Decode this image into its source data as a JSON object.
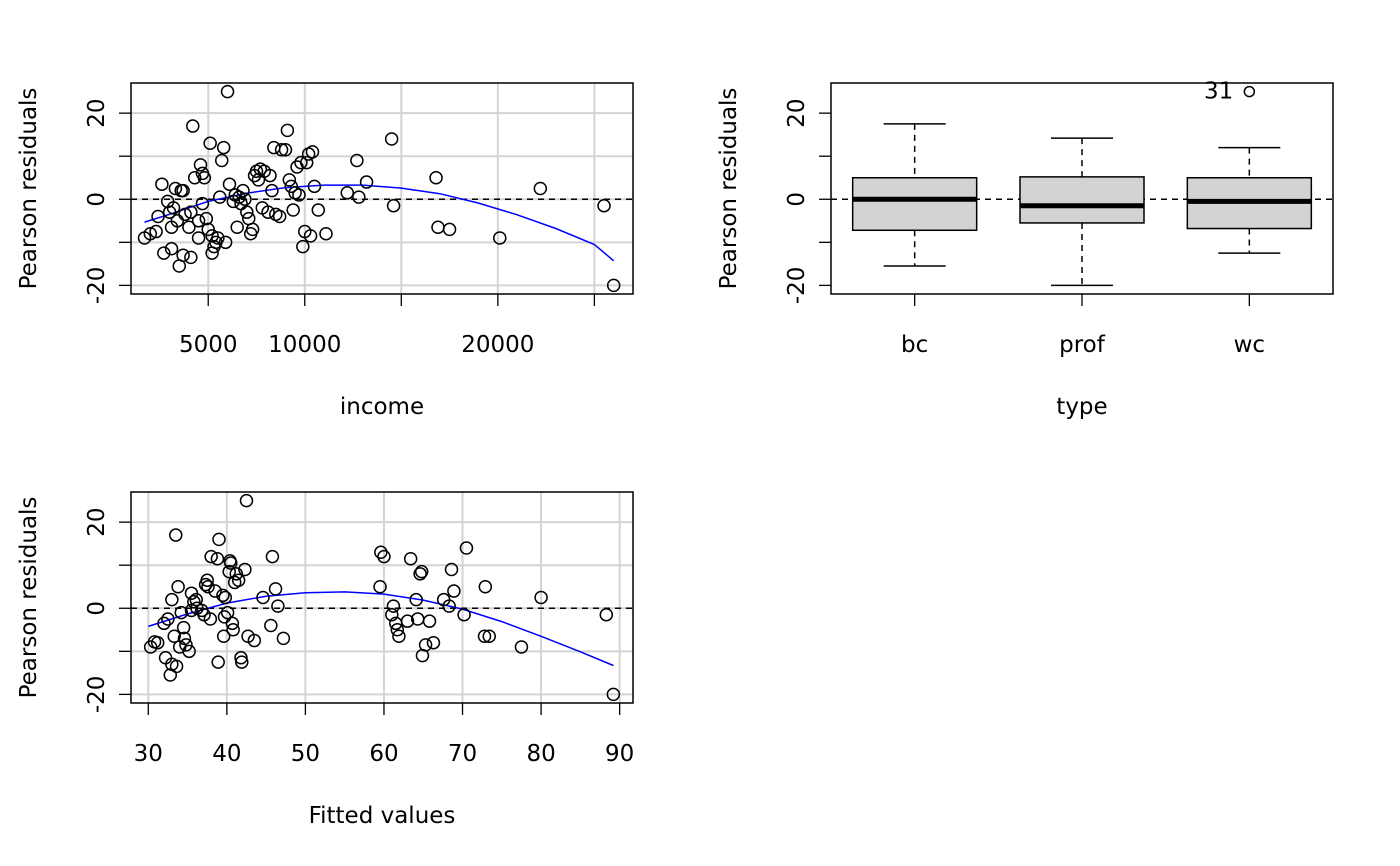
{
  "chart_data": [
    {
      "type": "scatter",
      "xlabel": "income",
      "ylabel": "Pearson residuals",
      "x_ticks": [
        5000,
        10000,
        15000,
        20000,
        25000
      ],
      "x_tick_labels": [
        "5000",
        "10000",
        "",
        "20000",
        ""
      ],
      "y_ticks": [
        -20,
        -10,
        0,
        10,
        20
      ],
      "y_tick_labels": [
        "-20",
        "",
        "0",
        "",
        "20"
      ],
      "xlim": [
        1000,
        27000
      ],
      "ylim": [
        -22,
        27
      ],
      "grid": true,
      "reference_line": 0,
      "points": [
        [
          1700,
          -9
        ],
        [
          2000,
          -8
        ],
        [
          2300,
          -7.5
        ],
        [
          2400,
          -4
        ],
        [
          2600,
          3.5
        ],
        [
          2700,
          -12.5
        ],
        [
          2900,
          -0.5
        ],
        [
          3000,
          -3
        ],
        [
          3100,
          -11.5
        ],
        [
          3100,
          -6.5
        ],
        [
          3200,
          -2
        ],
        [
          3300,
          2.5
        ],
        [
          3400,
          -5
        ],
        [
          3500,
          -15.5
        ],
        [
          3600,
          2
        ],
        [
          3700,
          2
        ],
        [
          3700,
          -13
        ],
        [
          3800,
          -3.5
        ],
        [
          4000,
          -6.5
        ],
        [
          4100,
          -13.5
        ],
        [
          4100,
          -3
        ],
        [
          4200,
          17
        ],
        [
          4300,
          5
        ],
        [
          4500,
          -5
        ],
        [
          4500,
          -9
        ],
        [
          4600,
          8
        ],
        [
          4700,
          6
        ],
        [
          4700,
          -1
        ],
        [
          4800,
          5
        ],
        [
          4900,
          -4.5
        ],
        [
          5000,
          -7
        ],
        [
          5100,
          13
        ],
        [
          5200,
          -8.5
        ],
        [
          5200,
          -12.5
        ],
        [
          5300,
          -11
        ],
        [
          5400,
          -10
        ],
        [
          5500,
          -9
        ],
        [
          5600,
          0.5
        ],
        [
          5700,
          9
        ],
        [
          5800,
          12
        ],
        [
          5900,
          -10
        ],
        [
          6000,
          25
        ],
        [
          6100,
          3.5
        ],
        [
          6300,
          -0.5
        ],
        [
          6400,
          1
        ],
        [
          6500,
          -6.5
        ],
        [
          6600,
          0.5
        ],
        [
          6700,
          -1
        ],
        [
          6800,
          2
        ],
        [
          6900,
          0
        ],
        [
          7000,
          -3
        ],
        [
          7100,
          -4.5
        ],
        [
          7200,
          -8
        ],
        [
          7300,
          -7
        ],
        [
          7400,
          5.5
        ],
        [
          7500,
          6.5
        ],
        [
          7600,
          4.5
        ],
        [
          7700,
          7
        ],
        [
          7800,
          -2
        ],
        [
          7900,
          6.5
        ],
        [
          8100,
          -3
        ],
        [
          8200,
          5.5
        ],
        [
          8300,
          2
        ],
        [
          8400,
          12
        ],
        [
          8500,
          -3.5
        ],
        [
          8700,
          -4
        ],
        [
          8800,
          11.5
        ],
        [
          9000,
          11.5
        ],
        [
          9100,
          16
        ],
        [
          9200,
          4.5
        ],
        [
          9300,
          3
        ],
        [
          9400,
          -2.5
        ],
        [
          9500,
          1.5
        ],
        [
          9600,
          7.5
        ],
        [
          9700,
          1
        ],
        [
          9800,
          8.5
        ],
        [
          9900,
          -11
        ],
        [
          10000,
          -7.5
        ],
        [
          10100,
          8.5
        ],
        [
          10200,
          10.5
        ],
        [
          10300,
          -8.5
        ],
        [
          10400,
          11
        ],
        [
          10500,
          3
        ],
        [
          10700,
          -2.5
        ],
        [
          11100,
          -8
        ],
        [
          12200,
          1.5
        ],
        [
          12700,
          9
        ],
        [
          12800,
          0.5
        ],
        [
          13200,
          4
        ],
        [
          14500,
          14
        ],
        [
          14600,
          -1.5
        ],
        [
          16800,
          5
        ],
        [
          16900,
          -6.5
        ],
        [
          17500,
          -7
        ],
        [
          20100,
          -9
        ],
        [
          22200,
          2.5
        ],
        [
          25500,
          -1.5
        ],
        [
          26000,
          -20
        ]
      ],
      "fit_curve": [
        [
          1700,
          -5.3
        ],
        [
          3000,
          -3.5
        ],
        [
          5000,
          -0.5
        ],
        [
          7000,
          1.4
        ],
        [
          9000,
          2.7
        ],
        [
          11000,
          3.3
        ],
        [
          13000,
          3.3
        ],
        [
          15000,
          2.6
        ],
        [
          17000,
          1.3
        ],
        [
          19000,
          -0.9
        ],
        [
          21000,
          -3.6
        ],
        [
          23000,
          -6.8
        ],
        [
          25000,
          -10.5
        ],
        [
          26000,
          -14.3
        ]
      ]
    },
    {
      "type": "box",
      "xlabel": "type",
      "ylabel": "Pearson residuals",
      "categories": [
        "bc",
        "prof",
        "wc"
      ],
      "y_ticks": [
        -20,
        -10,
        0,
        10,
        20
      ],
      "y_tick_labels": [
        "-20",
        "",
        "0",
        "",
        "20"
      ],
      "ylim": [
        -22,
        27
      ],
      "reference_line": 0,
      "boxes": [
        {
          "min": -15.5,
          "q1": -7.2,
          "median": 0,
          "q3": 5,
          "max": 17.5
        },
        {
          "min": -20,
          "q1": -5.5,
          "median": -1.5,
          "q3": 5.2,
          "max": 14.2
        },
        {
          "min": -12.5,
          "q1": -6.8,
          "median": -0.5,
          "q3": 5,
          "max": 12
        }
      ],
      "outliers": [
        {
          "category": "wc",
          "value": 25,
          "label": "31"
        }
      ]
    },
    {
      "type": "scatter",
      "xlabel": "Fitted values",
      "ylabel": "Pearson residuals",
      "x_ticks": [
        30,
        40,
        50,
        60,
        70,
        80,
        90
      ],
      "x_tick_labels": [
        "30",
        "40",
        "50",
        "60",
        "70",
        "80",
        "90"
      ],
      "y_ticks": [
        -20,
        -10,
        0,
        10,
        20
      ],
      "y_tick_labels": [
        "-20",
        "",
        "0",
        "",
        "20"
      ],
      "xlim": [
        27.8,
        91.7
      ],
      "ylim": [
        -22,
        27
      ],
      "grid": true,
      "reference_line": 0,
      "points": [
        [
          30.3,
          -9
        ],
        [
          30.8,
          -7.8
        ],
        [
          31.2,
          -8
        ],
        [
          32,
          -3.5
        ],
        [
          32.2,
          -11.5
        ],
        [
          32.5,
          -2.5
        ],
        [
          32.8,
          -15.5
        ],
        [
          33,
          2
        ],
        [
          33,
          -13
        ],
        [
          33.3,
          -6.5
        ],
        [
          33.5,
          17
        ],
        [
          33.6,
          -13.5
        ],
        [
          33.8,
          5
        ],
        [
          34,
          -9
        ],
        [
          34.2,
          -1
        ],
        [
          34.5,
          -4.5
        ],
        [
          34.6,
          -7
        ],
        [
          34.8,
          -8.5
        ],
        [
          35.2,
          -10
        ],
        [
          35.5,
          3.5
        ],
        [
          35.5,
          -0.5
        ],
        [
          35.8,
          1.5
        ],
        [
          36.1,
          2
        ],
        [
          36.2,
          0
        ],
        [
          36.8,
          -0.5
        ],
        [
          37.1,
          -1.5
        ],
        [
          37.3,
          5.5
        ],
        [
          37.5,
          6.5
        ],
        [
          37.6,
          5
        ],
        [
          37.9,
          -2.5
        ],
        [
          38,
          12
        ],
        [
          38.5,
          4
        ],
        [
          38.8,
          11.5
        ],
        [
          38.9,
          -12.5
        ],
        [
          39,
          16
        ],
        [
          39.5,
          3
        ],
        [
          39.6,
          -6.5
        ],
        [
          39.7,
          -2
        ],
        [
          39.8,
          2.5
        ],
        [
          40.1,
          -1
        ],
        [
          40.3,
          8.5
        ],
        [
          40.4,
          11
        ],
        [
          40.5,
          10.5
        ],
        [
          40.7,
          -3.5
        ],
        [
          40.8,
          -5
        ],
        [
          41,
          6
        ],
        [
          41.2,
          8
        ],
        [
          41.5,
          6.5
        ],
        [
          41.8,
          -11.5
        ],
        [
          41.9,
          -12.5
        ],
        [
          42.3,
          9
        ],
        [
          42.5,
          25
        ],
        [
          42.7,
          -6.5
        ],
        [
          43.5,
          -7.5
        ],
        [
          44.6,
          2.5
        ],
        [
          45.6,
          -4
        ],
        [
          45.8,
          12
        ],
        [
          46.2,
          4.5
        ],
        [
          46.5,
          0.5
        ],
        [
          47.2,
          -7
        ],
        [
          59.5,
          5
        ],
        [
          59.6,
          13
        ],
        [
          60,
          12
        ],
        [
          61,
          -1.5
        ],
        [
          61.2,
          0.5
        ],
        [
          61.5,
          -3.5
        ],
        [
          61.7,
          -5
        ],
        [
          61.9,
          -6.5
        ],
        [
          63,
          -3
        ],
        [
          63.4,
          11.5
        ],
        [
          64.1,
          2
        ],
        [
          64.3,
          -2.5
        ],
        [
          64.6,
          8
        ],
        [
          64.8,
          8.5
        ],
        [
          64.9,
          -11
        ],
        [
          65.3,
          -8.5
        ],
        [
          65.8,
          -3
        ],
        [
          66.3,
          -8
        ],
        [
          67.6,
          2
        ],
        [
          68.3,
          0.5
        ],
        [
          68.6,
          9
        ],
        [
          68.9,
          4
        ],
        [
          70.2,
          -1.5
        ],
        [
          70.5,
          14
        ],
        [
          72.8,
          -6.5
        ],
        [
          72.9,
          5
        ],
        [
          73.4,
          -6.5
        ],
        [
          77.5,
          -9
        ],
        [
          80,
          2.5
        ],
        [
          88.3,
          -1.5
        ],
        [
          89.2,
          -20
        ]
      ],
      "fit_curve": [
        [
          30,
          -4.2
        ],
        [
          35,
          -1.3
        ],
        [
          40,
          1.2
        ],
        [
          45,
          2.8
        ],
        [
          50,
          3.6
        ],
        [
          55,
          3.8
        ],
        [
          60,
          3.3
        ],
        [
          65,
          1.9
        ],
        [
          70,
          -0.2
        ],
        [
          75,
          -3.1
        ],
        [
          80,
          -6.5
        ],
        [
          85,
          -10.1
        ],
        [
          89.2,
          -13.3
        ]
      ]
    }
  ]
}
